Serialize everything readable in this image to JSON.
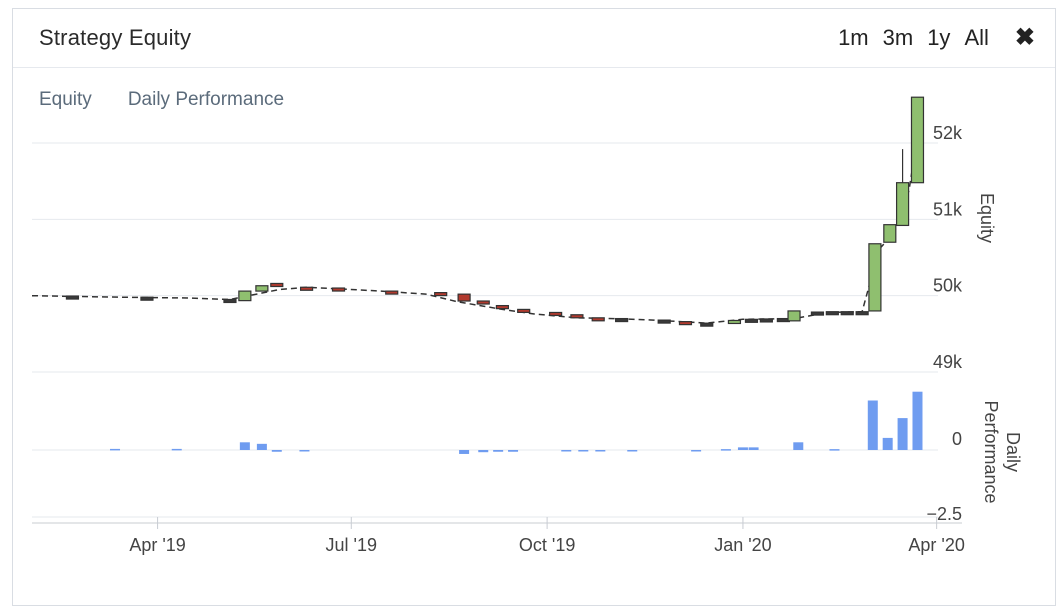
{
  "header": {
    "title": "Strategy Equity",
    "ranges": [
      "1m",
      "3m",
      "1y",
      "All"
    ],
    "close_label": "✖"
  },
  "tabs": [
    "Equity",
    "Daily Performance"
  ],
  "chart_data": [
    {
      "type": "candlestick",
      "title": "",
      "ylabel": "Equity",
      "ylim": [
        49000,
        52500
      ],
      "yticks": [
        49000,
        50000,
        51000,
        52000
      ],
      "ytick_labels": [
        "49k",
        "50k",
        "51k",
        "52k"
      ],
      "colors": {
        "up": "#8fbf6f",
        "down": "#b23a2e",
        "flat": "#3a3a3a",
        "line": "#333333",
        "grid": "#e6e9ee"
      },
      "line": [
        [
          "2019-02-01",
          50000
        ],
        [
          "2019-02-20",
          49990
        ],
        [
          "2019-03-15",
          49980
        ],
        [
          "2019-04-15",
          49970
        ],
        [
          "2019-05-05",
          49950
        ],
        [
          "2019-05-28",
          50080
        ],
        [
          "2019-06-10",
          50110
        ],
        [
          "2019-06-25",
          50090
        ],
        [
          "2019-07-15",
          50060
        ],
        [
          "2019-08-05",
          50020
        ],
        [
          "2019-08-20",
          49920
        ],
        [
          "2019-09-10",
          49820
        ],
        [
          "2019-09-25",
          49760
        ],
        [
          "2019-10-15",
          49710
        ],
        [
          "2019-11-01",
          49700
        ],
        [
          "2019-11-20",
          49680
        ],
        [
          "2019-12-15",
          49640
        ],
        [
          "2020-01-01",
          49690
        ],
        [
          "2020-01-25",
          49700
        ],
        [
          "2020-02-10",
          49780
        ],
        [
          "2020-02-26",
          49790
        ],
        [
          "2020-03-05",
          50610
        ],
        [
          "2020-03-12",
          50820
        ],
        [
          "2020-03-19",
          51380
        ],
        [
          "2020-03-25",
          52450
        ]
      ],
      "candles": [
        {
          "date": "2019-02-20",
          "open": 49995,
          "close": 49990,
          "high": 49995,
          "low": 49990
        },
        {
          "date": "2019-03-27",
          "open": 49980,
          "close": 49975,
          "high": 49980,
          "low": 49975
        },
        {
          "date": "2019-05-05",
          "open": 49945,
          "close": 49950,
          "high": 49950,
          "low": 49945
        },
        {
          "date": "2019-05-12",
          "open": 49935,
          "close": 50060,
          "high": 50060,
          "low": 49935
        },
        {
          "date": "2019-05-20",
          "open": 50060,
          "close": 50130,
          "high": 50130,
          "low": 50060
        },
        {
          "date": "2019-05-27",
          "open": 50160,
          "close": 50120,
          "high": 50160,
          "low": 50120
        },
        {
          "date": "2019-06-10",
          "open": 50110,
          "close": 50100,
          "high": 50110,
          "low": 50100
        },
        {
          "date": "2019-06-25",
          "open": 50100,
          "close": 50090,
          "high": 50100,
          "low": 50090
        },
        {
          "date": "2019-07-20",
          "open": 50060,
          "close": 50050,
          "high": 50060,
          "low": 50050
        },
        {
          "date": "2019-08-12",
          "open": 50040,
          "close": 50020,
          "high": 50040,
          "low": 50020
        },
        {
          "date": "2019-08-23",
          "open": 50020,
          "close": 49930,
          "high": 50020,
          "low": 49930
        },
        {
          "date": "2019-09-01",
          "open": 49930,
          "close": 49900,
          "high": 49930,
          "low": 49900
        },
        {
          "date": "2019-09-10",
          "open": 49870,
          "close": 49830,
          "high": 49870,
          "low": 49830
        },
        {
          "date": "2019-09-20",
          "open": 49820,
          "close": 49810,
          "high": 49820,
          "low": 49810
        },
        {
          "date": "2019-10-05",
          "open": 49780,
          "close": 49760,
          "high": 49780,
          "low": 49760
        },
        {
          "date": "2019-10-15",
          "open": 49750,
          "close": 49710,
          "high": 49750,
          "low": 49710
        },
        {
          "date": "2019-10-25",
          "open": 49710,
          "close": 49700,
          "high": 49710,
          "low": 49700
        },
        {
          "date": "2019-11-05",
          "open": 49700,
          "close": 49695,
          "high": 49700,
          "low": 49695
        },
        {
          "date": "2019-11-25",
          "open": 49680,
          "close": 49675,
          "high": 49680,
          "low": 49675
        },
        {
          "date": "2019-12-05",
          "open": 49660,
          "close": 49650,
          "high": 49660,
          "low": 49650
        },
        {
          "date": "2019-12-15",
          "open": 49640,
          "close": 49638,
          "high": 49640,
          "low": 49638
        },
        {
          "date": "2019-12-28",
          "open": 49640,
          "close": 49675,
          "high": 49675,
          "low": 49640
        },
        {
          "date": "2020-01-05",
          "open": 49685,
          "close": 49690,
          "high": 49690,
          "low": 49685
        },
        {
          "date": "2020-01-12",
          "open": 49690,
          "close": 49695,
          "high": 49695,
          "low": 49690
        },
        {
          "date": "2020-01-20",
          "open": 49700,
          "close": 49700,
          "high": 49700,
          "low": 49700
        },
        {
          "date": "2020-01-25",
          "open": 49670,
          "close": 49800,
          "high": 49800,
          "low": 49670
        },
        {
          "date": "2020-02-05",
          "open": 49785,
          "close": 49785,
          "high": 49785,
          "low": 49785
        },
        {
          "date": "2020-02-12",
          "open": 49785,
          "close": 49790,
          "high": 49790,
          "low": 49785
        },
        {
          "date": "2020-02-19",
          "open": 49790,
          "close": 49790,
          "high": 49790,
          "low": 49790
        },
        {
          "date": "2020-02-26",
          "open": 49790,
          "close": 49790,
          "high": 49790,
          "low": 49790
        },
        {
          "date": "2020-03-03",
          "open": 49800,
          "close": 50680,
          "high": 50680,
          "low": 49800
        },
        {
          "date": "2020-03-10",
          "open": 50700,
          "close": 50930,
          "high": 50930,
          "low": 50700
        },
        {
          "date": "2020-03-16",
          "open": 50920,
          "close": 51480,
          "high": 51920,
          "low": 50920
        },
        {
          "date": "2020-03-23",
          "open": 51480,
          "close": 52600,
          "high": 52600,
          "low": 51480
        }
      ]
    },
    {
      "type": "bar",
      "ylabel": "Daily Performance",
      "ylim": [
        -3,
        4.5
      ],
      "yticks": [
        -2.5,
        0
      ],
      "ytick_labels": [
        "−2.5",
        "0"
      ],
      "xticks": [
        "2019-04-01",
        "2019-07-01",
        "2019-10-01",
        "2020-01-01",
        "2020-04-01"
      ],
      "xtick_labels": [
        "Apr '19",
        "Jul '19",
        "Oct '19",
        "Jan '20",
        "Apr '20"
      ],
      "colors": {
        "bar": "#6f9cf0"
      },
      "bars": [
        [
          "2019-03-12",
          0.05
        ],
        [
          "2019-04-10",
          0.05
        ],
        [
          "2019-05-12",
          0.35
        ],
        [
          "2019-05-20",
          0.28
        ],
        [
          "2019-05-27",
          -0.08
        ],
        [
          "2019-06-09",
          -0.05
        ],
        [
          "2019-08-23",
          -0.18
        ],
        [
          "2019-09-01",
          -0.1
        ],
        [
          "2019-09-08",
          -0.08
        ],
        [
          "2019-09-15",
          -0.08
        ],
        [
          "2019-10-10",
          -0.04
        ],
        [
          "2019-10-18",
          -0.06
        ],
        [
          "2019-10-26",
          -0.06
        ],
        [
          "2019-11-10",
          -0.03
        ],
        [
          "2019-12-10",
          -0.03
        ],
        [
          "2019-12-24",
          0.04
        ],
        [
          "2020-01-01",
          0.12
        ],
        [
          "2020-01-06",
          0.12
        ],
        [
          "2020-01-27",
          0.35
        ],
        [
          "2020-02-13",
          0.04
        ],
        [
          "2020-03-02",
          2.25
        ],
        [
          "2020-03-09",
          0.55
        ],
        [
          "2020-03-16",
          1.45
        ],
        [
          "2020-03-23",
          2.65
        ]
      ]
    }
  ]
}
